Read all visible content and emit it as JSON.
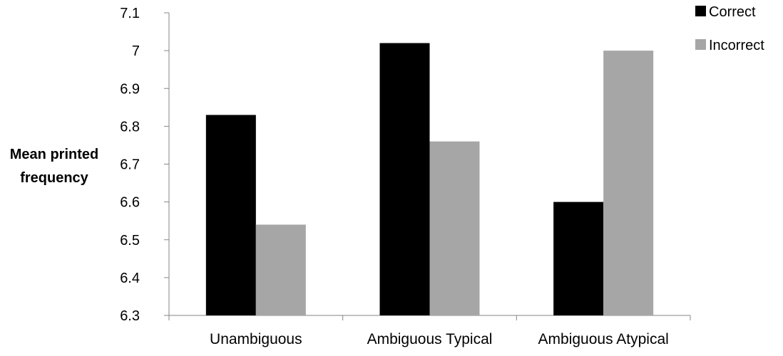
{
  "chart_data": {
    "type": "bar",
    "title": "",
    "xlabel": "",
    "ylabel_lines": [
      "Mean printed",
      "frequency"
    ],
    "categories": [
      "Unambiguous",
      "Ambiguous Typical",
      "Ambiguous Atypical"
    ],
    "series": [
      {
        "name": "Correct",
        "color": "#000000",
        "values": [
          6.83,
          7.02,
          6.6
        ]
      },
      {
        "name": "Incorrect",
        "color": "#a6a6a6",
        "values": [
          6.54,
          6.76,
          7.0
        ]
      }
    ],
    "ylim": [
      6.3,
      7.1
    ],
    "yticks": [
      "6.3",
      "6.4",
      "6.5",
      "6.6",
      "6.7",
      "6.8",
      "6.9",
      "7",
      "7.1"
    ],
    "grid": false,
    "legend_position": "top-right"
  }
}
